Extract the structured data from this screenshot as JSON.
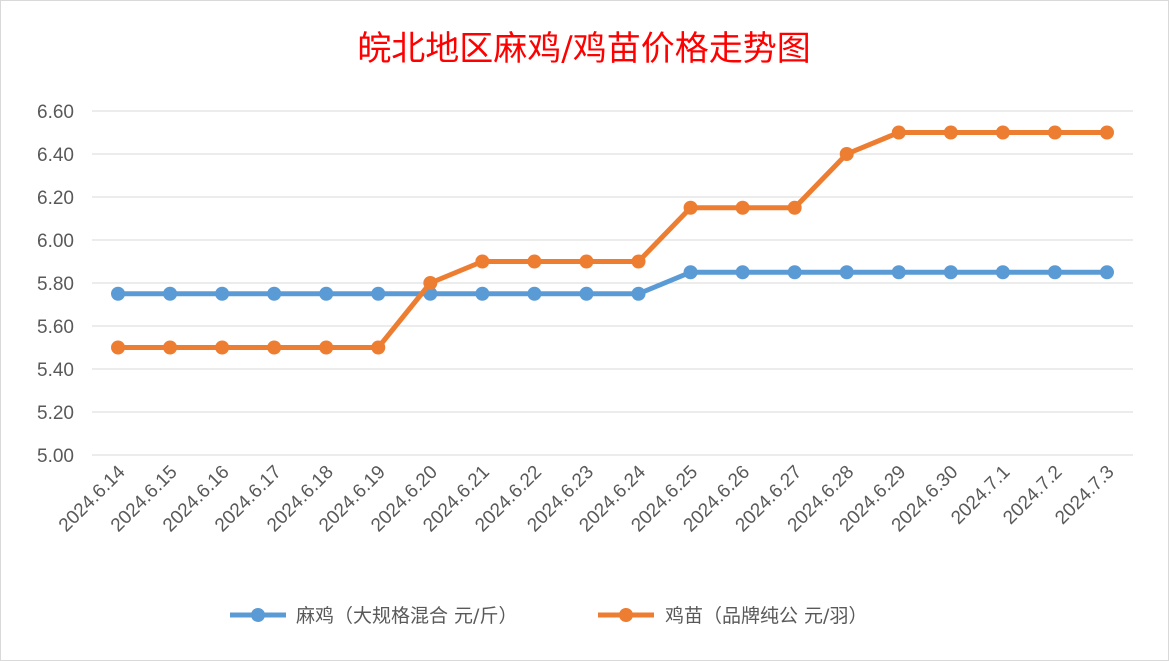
{
  "chart_data": {
    "type": "line",
    "title": "皖北地区麻鸡/鸡苗价格走势图",
    "categories": [
      "2024.6.14",
      "2024.6.15",
      "2024.6.16",
      "2024.6.17",
      "2024.6.18",
      "2024.6.19",
      "2024.6.20",
      "2024.6.21",
      "2024.6.22",
      "2024.6.23",
      "2024.6.24",
      "2024.6.25",
      "2024.6.26",
      "2024.6.27",
      "2024.6.28",
      "2024.6.29",
      "2024.6.30",
      "2024.7.1",
      "2024.7.2",
      "2024.7.3"
    ],
    "yticks": [
      "5.00",
      "5.20",
      "5.40",
      "5.60",
      "5.80",
      "6.00",
      "6.20",
      "6.40",
      "6.60"
    ],
    "ylim": [
      5.0,
      6.6
    ],
    "grid": true,
    "legend_position": "bottom",
    "series": [
      {
        "name": "麻鸡（大规格混合 元/斤）",
        "color": "#5b9bd5",
        "values": [
          5.75,
          5.75,
          5.75,
          5.75,
          5.75,
          5.75,
          5.75,
          5.75,
          5.75,
          5.75,
          5.75,
          5.85,
          5.85,
          5.85,
          5.85,
          5.85,
          5.85,
          5.85,
          5.85,
          5.85
        ]
      },
      {
        "name": "鸡苗（品牌纯公 元/羽）",
        "color": "#ed7d31",
        "values": [
          5.5,
          5.5,
          5.5,
          5.5,
          5.5,
          5.5,
          5.8,
          5.9,
          5.9,
          5.9,
          5.9,
          6.15,
          6.15,
          6.15,
          6.4,
          6.5,
          6.5,
          6.5,
          6.5,
          6.5
        ]
      }
    ]
  }
}
